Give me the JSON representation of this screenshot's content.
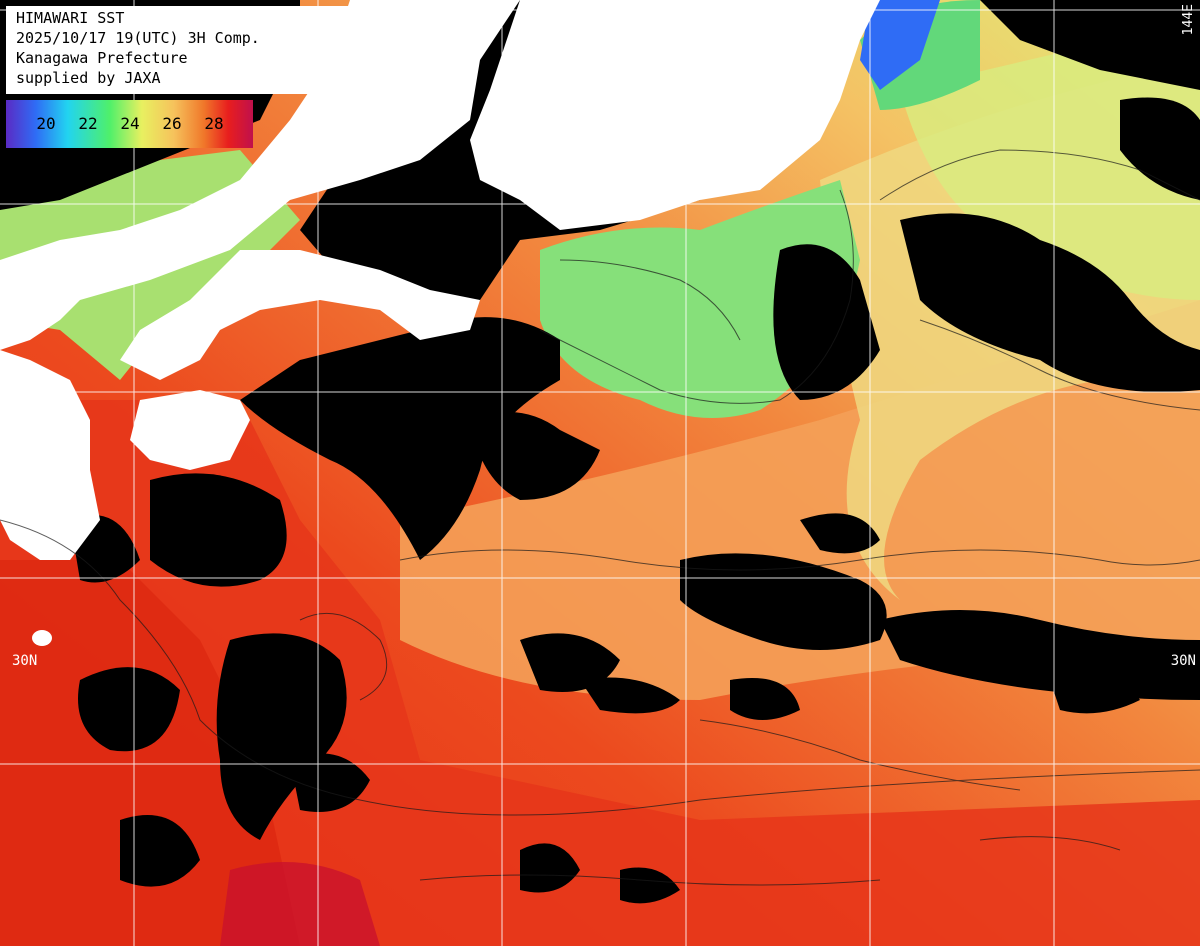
{
  "header": {
    "title": "HIMAWARI SST",
    "timestamp": "2025/10/17 19(UTC) 3H Comp.",
    "prefecture": "Kanagawa Prefecture",
    "supplier": "supplied by JAXA"
  },
  "legend": {
    "ticks": [
      "20",
      "22",
      "24",
      "26",
      "28"
    ],
    "colors": [
      "#5a2bc4",
      "#2f6cf5",
      "#22d4f0",
      "#4ff06a",
      "#e8f060",
      "#f6c25c",
      "#f0782a",
      "#e81e1e",
      "#c0104c"
    ]
  },
  "grid_labels": {
    "lon": "144E",
    "lat_left": "30N",
    "lat_right": "30N"
  },
  "colors": {
    "land": "#ffffff",
    "cloud": "#000000",
    "grid": "#ffffff",
    "sst_warm": "#e8391e",
    "sst_mid": "#f4a256",
    "sst_cool": "#e6ee7a",
    "sst_cold": "#7de07a"
  }
}
